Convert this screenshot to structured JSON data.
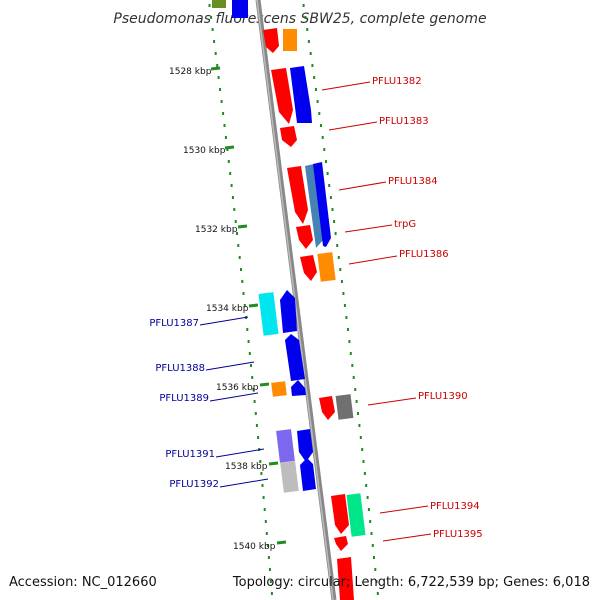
{
  "title": "Pseudomonas fluorescens SBW25, complete genome",
  "accession": "Accession: NC_012660",
  "topology": "Topology: circular; Length: 6,722,539 bp; Genes: 6,018",
  "colors": {
    "backbone": "#888888",
    "tick": "#228B22",
    "forward_label": "#cc0000",
    "reverse_label": "#000099",
    "red": "#ff0000",
    "blue": "#0000ee",
    "orange": "#ff8c00",
    "cyan": "#00e5ee",
    "steelblue": "#4682b4",
    "gray": "#707070",
    "lavender": "#7b68ee",
    "silver": "#bdbdbd",
    "green": "#00e68a",
    "olive": "#6b8e23"
  },
  "kbp_ticks": [
    "1528 kbp",
    "1530 kbp",
    "1532 kbp",
    "1534 kbp",
    "1536 kbp",
    "1538 kbp",
    "1540 kbp"
  ],
  "gene_labels": {
    "right": [
      "PFLU1382",
      "PFLU1383",
      "PFLU1384",
      "trpG",
      "PFLU1386",
      "PFLU1390",
      "PFLU1394",
      "PFLU1395"
    ],
    "left": [
      "PFLU1387",
      "PFLU1388",
      "PFLU1389",
      "PFLU1391",
      "PFLU1392"
    ]
  }
}
